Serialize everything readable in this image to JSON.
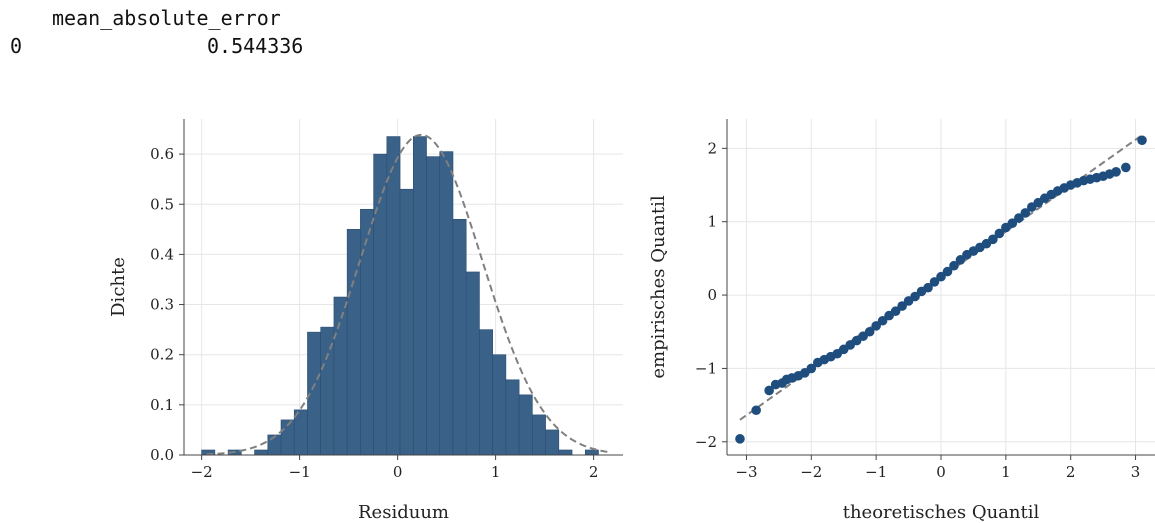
{
  "table": {
    "column_header": "mean_absolute_error",
    "row_index": "0",
    "value": "0.544336"
  },
  "colors": {
    "bar_fill": "#3a6188",
    "bar_edge": "#2b4d70",
    "point": "#1f4e7e",
    "reference_line": "#808080",
    "grid": "#e6e6e6",
    "axis": "#444444"
  },
  "chart_data": [
    {
      "type": "bar",
      "subtype": "histogram",
      "xlabel": "Residuum",
      "ylabel": "Dichte",
      "xlim": [
        -2.18,
        2.3
      ],
      "ylim": [
        0,
        0.67
      ],
      "xticks": [
        -2,
        -1,
        0,
        1,
        2
      ],
      "xtick_labels": [
        "−2",
        "−1",
        "0",
        "1",
        "2"
      ],
      "yticks": [
        0,
        0.1,
        0.2,
        0.3,
        0.4,
        0.5,
        0.6
      ],
      "ytick_labels": [
        "0.0",
        "0.1",
        "0.2",
        "0.3",
        "0.4",
        "0.5",
        "0.6"
      ],
      "grid": true,
      "bin_width": 0.135,
      "bin_starts": [
        -2.0,
        -1.865,
        -1.73,
        -1.595,
        -1.46,
        -1.325,
        -1.19,
        -1.055,
        -0.92,
        -0.785,
        -0.65,
        -0.515,
        -0.38,
        -0.245,
        -0.11,
        0.025,
        0.16,
        0.295,
        0.43,
        0.565,
        0.7,
        0.835,
        0.97,
        1.105,
        1.24,
        1.375,
        1.51,
        1.645,
        1.78,
        1.915,
        2.05
      ],
      "values": [
        0.01,
        0.0,
        0.01,
        0.0,
        0.01,
        0.04,
        0.07,
        0.09,
        0.245,
        0.255,
        0.315,
        0.45,
        0.49,
        0.6,
        0.635,
        0.53,
        0.635,
        0.595,
        0.605,
        0.47,
        0.365,
        0.25,
        0.2,
        0.15,
        0.12,
        0.08,
        0.05,
        0.01,
        0.0,
        0.01,
        0.0
      ],
      "density_curve": {
        "style": "dashed",
        "mean": 0.24,
        "std": 0.625
      }
    },
    {
      "type": "scatter",
      "subtype": "qq-plot",
      "xlabel": "theoretisches Quantil",
      "ylabel": "empirisches Quantil",
      "xlim": [
        -3.3,
        3.3
      ],
      "ylim": [
        -2.18,
        2.4
      ],
      "xticks": [
        -3,
        -2,
        -1,
        0,
        1,
        2,
        3
      ],
      "xtick_labels": [
        "−3",
        "−2",
        "−1",
        "0",
        "1",
        "2",
        "3"
      ],
      "yticks": [
        -2,
        -1,
        0,
        1,
        2
      ],
      "ytick_labels": [
        "−2",
        "−1",
        "0",
        "1",
        "2"
      ],
      "grid": true,
      "reference_line": {
        "style": "dashed",
        "x": [
          -3.1,
          3.1
        ],
        "y": [
          -1.7,
          2.18
        ]
      },
      "points_x": [
        -3.1,
        -2.85,
        -2.65,
        -2.55,
        -2.45,
        -2.38,
        -2.3,
        -2.2,
        -2.1,
        -2.0,
        -1.9,
        -1.8,
        -1.7,
        -1.6,
        -1.5,
        -1.4,
        -1.3,
        -1.2,
        -1.1,
        -1.0,
        -0.9,
        -0.8,
        -0.7,
        -0.6,
        -0.5,
        -0.4,
        -0.3,
        -0.2,
        -0.1,
        0.0,
        0.1,
        0.2,
        0.3,
        0.4,
        0.5,
        0.6,
        0.7,
        0.8,
        0.9,
        1.0,
        1.1,
        1.2,
        1.3,
        1.4,
        1.5,
        1.6,
        1.7,
        1.8,
        1.9,
        2.0,
        2.1,
        2.2,
        2.3,
        2.4,
        2.5,
        2.6,
        2.7,
        2.85,
        3.1
      ],
      "points_y": [
        -1.96,
        -1.57,
        -1.3,
        -1.22,
        -1.2,
        -1.15,
        -1.13,
        -1.1,
        -1.06,
        -1.0,
        -0.92,
        -0.88,
        -0.84,
        -0.8,
        -0.74,
        -0.68,
        -0.62,
        -0.56,
        -0.5,
        -0.42,
        -0.35,
        -0.28,
        -0.22,
        -0.15,
        -0.08,
        -0.02,
        0.05,
        0.1,
        0.18,
        0.25,
        0.32,
        0.4,
        0.48,
        0.55,
        0.6,
        0.65,
        0.7,
        0.76,
        0.84,
        0.92,
        0.98,
        1.05,
        1.12,
        1.2,
        1.26,
        1.32,
        1.37,
        1.42,
        1.46,
        1.5,
        1.53,
        1.56,
        1.58,
        1.6,
        1.62,
        1.65,
        1.68,
        1.74,
        2.11
      ]
    }
  ]
}
